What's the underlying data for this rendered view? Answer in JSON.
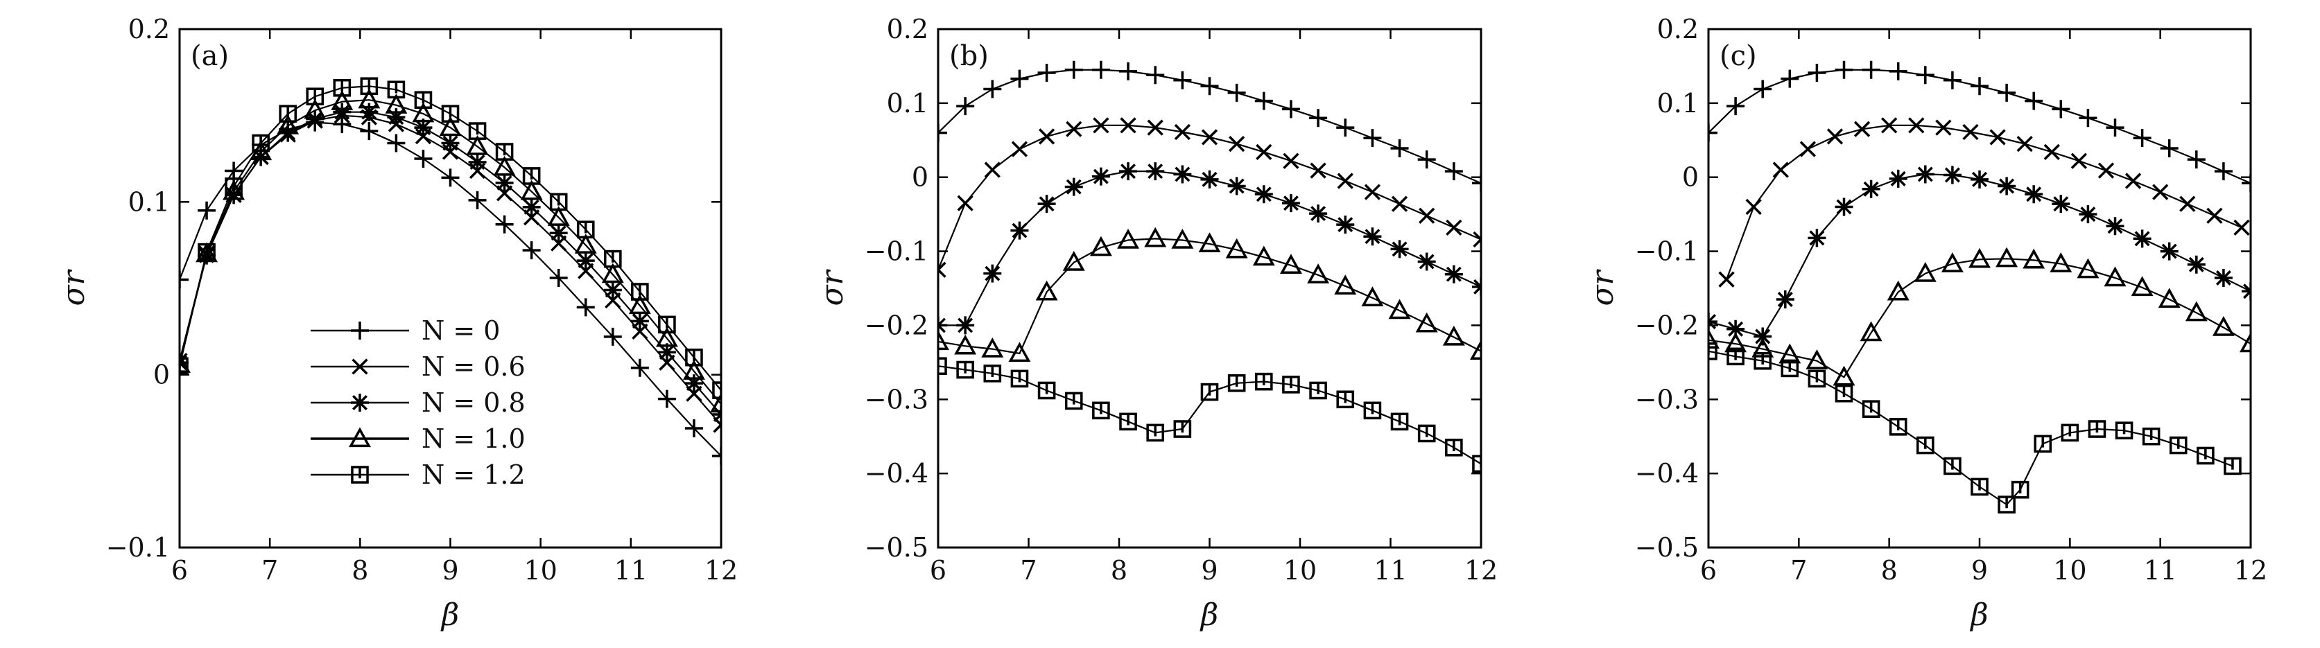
{
  "chart_data": [
    {
      "type": "line",
      "panel_label": "(a)",
      "xlabel": "β",
      "ylabel": "σr",
      "xlim": [
        6,
        12
      ],
      "ylim": [
        -0.1,
        0.2
      ],
      "xticks": [
        "6",
        "7",
        "8",
        "9",
        "10",
        "11",
        "12"
      ],
      "yticks": [
        "−0.1",
        "0",
        "0.1",
        "0.2"
      ],
      "legend_position": "lower-left",
      "series": [
        {
          "name": "N = 0",
          "marker": "plus",
          "x": [
            6,
            6.3,
            6.6,
            6.9,
            7.2,
            7.5,
            7.8,
            8.1,
            8.4,
            8.7,
            9,
            9.3,
            9.6,
            9.9,
            10.2,
            10.5,
            10.8,
            11.1,
            11.4,
            11.7,
            12
          ],
          "y": [
            0.055,
            0.095,
            0.118,
            0.133,
            0.142,
            0.146,
            0.145,
            0.141,
            0.134,
            0.125,
            0.114,
            0.101,
            0.087,
            0.072,
            0.056,
            0.039,
            0.022,
            0.004,
            -0.014,
            -0.031,
            -0.047
          ]
        },
        {
          "name": "N = 0.6",
          "marker": "x",
          "x": [
            6,
            6.3,
            6.6,
            6.9,
            7.2,
            7.5,
            7.8,
            8.1,
            8.4,
            8.7,
            9,
            9.3,
            9.6,
            9.9,
            10.2,
            10.5,
            10.8,
            11.1,
            11.4,
            11.7,
            12
          ],
          "y": [
            0.008,
            0.07,
            0.104,
            0.126,
            0.139,
            0.147,
            0.15,
            0.149,
            0.145,
            0.138,
            0.129,
            0.118,
            0.105,
            0.091,
            0.076,
            0.06,
            0.043,
            0.025,
            0.007,
            -0.011,
            -0.029
          ]
        },
        {
          "name": "N = 0.8",
          "marker": "asterisk",
          "x": [
            6,
            6.3,
            6.6,
            6.9,
            7.2,
            7.5,
            7.8,
            8.1,
            8.4,
            8.7,
            9,
            9.3,
            9.6,
            9.9,
            10.2,
            10.5,
            10.8,
            11.1,
            11.4,
            11.7,
            12
          ],
          "y": [
            0.007,
            0.069,
            0.104,
            0.126,
            0.14,
            0.148,
            0.152,
            0.152,
            0.149,
            0.143,
            0.134,
            0.123,
            0.111,
            0.097,
            0.082,
            0.066,
            0.049,
            0.031,
            0.013,
            -0.005,
            -0.023
          ]
        },
        {
          "name": "N = 1.0",
          "marker": "triangle",
          "x": [
            6,
            6.3,
            6.6,
            6.9,
            7.2,
            7.5,
            7.8,
            8.1,
            8.4,
            8.7,
            9,
            9.3,
            9.6,
            9.9,
            10.2,
            10.5,
            10.8,
            11.1,
            11.4,
            11.7,
            12
          ],
          "y": [
            0.006,
            0.07,
            0.106,
            0.129,
            0.144,
            0.153,
            0.158,
            0.159,
            0.156,
            0.151,
            0.143,
            0.132,
            0.12,
            0.106,
            0.091,
            0.075,
            0.058,
            0.04,
            0.021,
            0.002,
            -0.017
          ]
        },
        {
          "name": "N = 1.2",
          "marker": "square",
          "x": [
            6,
            6.3,
            6.6,
            6.9,
            7.2,
            7.5,
            7.8,
            8.1,
            8.4,
            8.7,
            9,
            9.3,
            9.6,
            9.9,
            10.2,
            10.5,
            10.8,
            11.1,
            11.4,
            11.7,
            12
          ],
          "y": [
            0.005,
            0.071,
            0.109,
            0.134,
            0.151,
            0.161,
            0.166,
            0.167,
            0.165,
            0.159,
            0.151,
            0.141,
            0.129,
            0.115,
            0.1,
            0.084,
            0.067,
            0.048,
            0.029,
            0.01,
            -0.009
          ]
        }
      ]
    },
    {
      "type": "line",
      "panel_label": "(b)",
      "xlabel": "β",
      "ylabel": "σr",
      "xlim": [
        6,
        12
      ],
      "ylim": [
        -0.5,
        0.2
      ],
      "xticks": [
        "6",
        "7",
        "8",
        "9",
        "10",
        "11",
        "12"
      ],
      "yticks": [
        "−0.5",
        "−0.4",
        "−0.3",
        "−0.2",
        "−0.1",
        "0",
        "0.1",
        "0.2"
      ],
      "series": [
        {
          "name": "N = 0",
          "marker": "plus",
          "x": [
            6,
            6.3,
            6.6,
            6.9,
            7.2,
            7.5,
            7.8,
            8.1,
            8.4,
            8.7,
            9,
            9.3,
            9.6,
            9.9,
            10.2,
            10.5,
            10.8,
            11.1,
            11.4,
            11.7,
            12
          ],
          "y": [
            0.06,
            0.096,
            0.119,
            0.133,
            0.141,
            0.145,
            0.145,
            0.143,
            0.138,
            0.131,
            0.123,
            0.114,
            0.103,
            0.092,
            0.08,
            0.067,
            0.053,
            0.039,
            0.024,
            0.008,
            -0.008
          ]
        },
        {
          "name": "N = 0.6",
          "marker": "x",
          "x": [
            6,
            6.3,
            6.6,
            6.9,
            7.2,
            7.5,
            7.8,
            8.1,
            8.4,
            8.7,
            9,
            9.3,
            9.6,
            9.9,
            10.2,
            10.5,
            10.8,
            11.1,
            11.4,
            11.7,
            12
          ],
          "y": [
            -0.125,
            -0.035,
            0.01,
            0.038,
            0.055,
            0.065,
            0.07,
            0.07,
            0.067,
            0.061,
            0.054,
            0.045,
            0.034,
            0.022,
            0.009,
            -0.005,
            -0.02,
            -0.036,
            -0.052,
            -0.068,
            -0.084
          ]
        },
        {
          "name": "N = 0.8",
          "marker": "asterisk",
          "x": [
            6,
            6.3,
            6.6,
            6.9,
            7.2,
            7.5,
            7.8,
            8.1,
            8.4,
            8.7,
            9,
            9.3,
            9.6,
            9.9,
            10.2,
            10.5,
            10.8,
            11.1,
            11.4,
            11.7,
            12
          ],
          "y": [
            -0.2,
            -0.2,
            -0.13,
            -0.072,
            -0.036,
            -0.013,
            0.001,
            0.008,
            0.008,
            0.004,
            -0.003,
            -0.012,
            -0.023,
            -0.035,
            -0.049,
            -0.064,
            -0.08,
            -0.097,
            -0.114,
            -0.131,
            -0.148
          ]
        },
        {
          "name": "N = 1.0",
          "marker": "triangle",
          "x": [
            6,
            6.3,
            6.6,
            6.9,
            7.2,
            7.5,
            7.8,
            8.1,
            8.4,
            8.7,
            9,
            9.3,
            9.6,
            9.9,
            10.2,
            10.5,
            10.8,
            11.1,
            11.4,
            11.7,
            12
          ],
          "y": [
            -0.222,
            -0.228,
            -0.232,
            -0.238,
            -0.155,
            -0.115,
            -0.095,
            -0.085,
            -0.083,
            -0.085,
            -0.09,
            -0.098,
            -0.108,
            -0.119,
            -0.132,
            -0.147,
            -0.163,
            -0.18,
            -0.198,
            -0.216,
            -0.235
          ]
        },
        {
          "name": "N = 1.2",
          "marker": "square",
          "x": [
            6,
            6.3,
            6.6,
            6.9,
            7.2,
            7.5,
            7.8,
            8.1,
            8.4,
            8.7,
            9,
            9.3,
            9.6,
            9.9,
            10.2,
            10.5,
            10.8,
            11.1,
            11.4,
            11.7,
            12
          ],
          "y": [
            -0.255,
            -0.26,
            -0.265,
            -0.272,
            -0.288,
            -0.302,
            -0.315,
            -0.33,
            -0.345,
            -0.34,
            -0.29,
            -0.278,
            -0.276,
            -0.28,
            -0.288,
            -0.3,
            -0.315,
            -0.33,
            -0.346,
            -0.365,
            -0.387
          ]
        }
      ]
    },
    {
      "type": "line",
      "panel_label": "(c)",
      "xlabel": "β",
      "ylabel": "σr",
      "xlim": [
        6,
        12
      ],
      "ylim": [
        -0.5,
        0.2
      ],
      "xticks": [
        "6",
        "7",
        "8",
        "9",
        "10",
        "11",
        "12"
      ],
      "yticks": [
        "−0.5",
        "−0.4",
        "−0.3",
        "−0.2",
        "−0.1",
        "0",
        "0.1",
        "0.2"
      ],
      "series": [
        {
          "name": "N = 0",
          "marker": "plus",
          "x": [
            6,
            6.3,
            6.6,
            6.9,
            7.2,
            7.5,
            7.8,
            8.1,
            8.4,
            8.7,
            9,
            9.3,
            9.6,
            9.9,
            10.2,
            10.5,
            10.8,
            11.1,
            11.4,
            11.7,
            12
          ],
          "y": [
            0.06,
            0.096,
            0.119,
            0.133,
            0.141,
            0.145,
            0.145,
            0.143,
            0.138,
            0.131,
            0.123,
            0.114,
            0.103,
            0.092,
            0.08,
            0.067,
            0.053,
            0.039,
            0.024,
            0.008,
            -0.008
          ]
        },
        {
          "name": "N = 0.6",
          "marker": "x",
          "x": [
            6.2,
            6.5,
            6.8,
            7.1,
            7.4,
            7.7,
            8,
            8.3,
            8.6,
            8.9,
            9.2,
            9.5,
            9.8,
            10.1,
            10.4,
            10.7,
            11,
            11.3,
            11.6,
            11.9
          ],
          "y": [
            -0.138,
            -0.04,
            0.01,
            0.038,
            0.055,
            0.065,
            0.07,
            0.07,
            0.067,
            0.061,
            0.054,
            0.045,
            0.034,
            0.022,
            0.009,
            -0.005,
            -0.02,
            -0.036,
            -0.052,
            -0.068
          ]
        },
        {
          "name": "N = 0.8",
          "marker": "asterisk",
          "x": [
            6,
            6.3,
            6.6,
            6.85,
            7.2,
            7.5,
            7.8,
            8.1,
            8.4,
            8.7,
            9,
            9.3,
            9.6,
            9.9,
            10.2,
            10.5,
            10.8,
            11.1,
            11.4,
            11.7,
            12
          ],
          "y": [
            -0.195,
            -0.205,
            -0.215,
            -0.165,
            -0.082,
            -0.04,
            -0.016,
            -0.002,
            0.004,
            0.003,
            -0.003,
            -0.012,
            -0.023,
            -0.036,
            -0.05,
            -0.066,
            -0.083,
            -0.1,
            -0.118,
            -0.136,
            -0.154
          ]
        },
        {
          "name": "N = 1.0",
          "marker": "triangle",
          "x": [
            6,
            6.3,
            6.6,
            6.9,
            7.2,
            7.5,
            7.8,
            8.1,
            8.4,
            8.7,
            9,
            9.3,
            9.6,
            9.9,
            10.2,
            10.5,
            10.8,
            11.1,
            11.4,
            11.7,
            12
          ],
          "y": [
            -0.22,
            -0.225,
            -0.232,
            -0.24,
            -0.248,
            -0.27,
            -0.21,
            -0.155,
            -0.13,
            -0.117,
            -0.111,
            -0.11,
            -0.112,
            -0.117,
            -0.125,
            -0.136,
            -0.149,
            -0.165,
            -0.183,
            -0.203,
            -0.225
          ]
        },
        {
          "name": "N = 1.2",
          "marker": "square",
          "x": [
            6,
            6.3,
            6.6,
            6.9,
            7.2,
            7.5,
            7.8,
            8.1,
            8.4,
            8.7,
            9,
            9.3,
            9.45,
            9.7,
            10,
            10.3,
            10.6,
            10.9,
            11.2,
            11.5,
            11.8
          ],
          "y": [
            -0.235,
            -0.242,
            -0.248,
            -0.258,
            -0.272,
            -0.292,
            -0.313,
            -0.337,
            -0.362,
            -0.39,
            -0.418,
            -0.442,
            -0.422,
            -0.36,
            -0.345,
            -0.34,
            -0.342,
            -0.35,
            -0.362,
            -0.376,
            -0.39
          ]
        }
      ]
    }
  ],
  "legend": [
    {
      "label": "N = 0",
      "marker": "plus"
    },
    {
      "label": "N = 0.6",
      "marker": "x"
    },
    {
      "label": "N = 0.8",
      "marker": "asterisk"
    },
    {
      "label": "N = 1.0",
      "marker": "triangle"
    },
    {
      "label": "N = 1.2",
      "marker": "square"
    }
  ]
}
